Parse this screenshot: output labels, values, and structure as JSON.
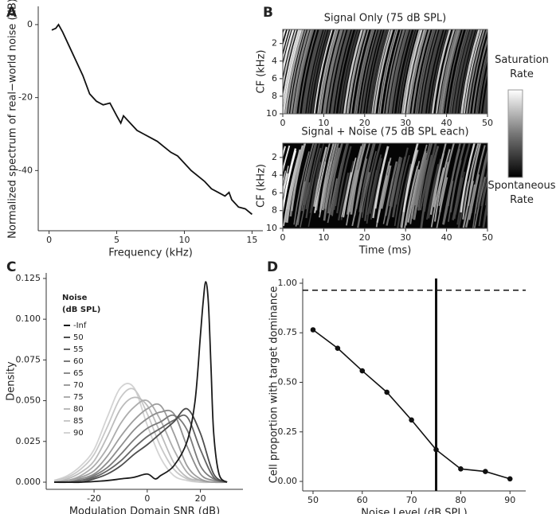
{
  "chart_data": [
    {
      "type": "line",
      "panel_label": "A",
      "xlabel": "Frequency (kHz)",
      "ylabel": "Normalized spectrum of real−world noise (dB)",
      "x": [
        0.2,
        0.5,
        0.7,
        1,
        1.5,
        2,
        2.5,
        3,
        3.5,
        4,
        4.5,
        5,
        5.3,
        5.5,
        6,
        6.5,
        7,
        7.5,
        8,
        8.5,
        9,
        9.5,
        10,
        10.5,
        11,
        11.5,
        12,
        12.5,
        13,
        13.3,
        13.5,
        14,
        14.5,
        15
      ],
      "values": [
        -1.5,
        -1,
        0,
        -2,
        -6,
        -10,
        -14,
        -19,
        -21,
        -22,
        -21.5,
        -25,
        -27,
        -25,
        -27,
        -29,
        -30,
        -31,
        -32,
        -33.5,
        -35,
        -36,
        -38,
        -40,
        -41.5,
        -43,
        -45,
        -46,
        -47,
        -46,
        -48,
        -50,
        -50.5,
        -52
      ],
      "color": "#111111",
      "xlim": [
        -0.8,
        15.8
      ],
      "ylim": [
        -56.5,
        5
      ],
      "xticks": [
        0,
        5,
        10,
        15
      ],
      "yticks": [
        0,
        -20,
        -40
      ]
    },
    {
      "type": "heatmap",
      "panel_label": "B",
      "title": "Signal Only (75 dB SPL)",
      "ylabel": "CF (kHz)",
      "xlim": [
        0,
        50
      ],
      "ylim": [
        10,
        0.4
      ],
      "xticks": [
        0,
        10,
        20,
        30,
        40,
        50
      ],
      "yticks": [
        2,
        4,
        6,
        8,
        10
      ],
      "noise": false,
      "colorbar_labels": [
        "Saturation\nRate",
        "Spontaneous\nRate"
      ]
    },
    {
      "type": "heatmap",
      "title": "Signal + Noise (75 dB SPL each)",
      "ylabel": "CF (kHz)",
      "xlabel": "Time (ms)",
      "xlim": [
        0,
        50
      ],
      "ylim": [
        10,
        0.4
      ],
      "xticks": [
        0,
        10,
        20,
        30,
        40,
        50
      ],
      "yticks": [
        2,
        4,
        6,
        8,
        10
      ],
      "noise": true
    },
    {
      "type": "density",
      "panel_label": "C",
      "xlabel": "Modulation Domain SNR (dB)",
      "ylabel": "Density",
      "legend_title": "Noise\n(dB SPL)",
      "xlim": [
        -38,
        36
      ],
      "ylim": [
        -0.0044,
        0.1284
      ],
      "xticks": [
        -20,
        0,
        20
      ],
      "yticks": [
        {
          "value": 0,
          "label": "0.000"
        },
        {
          "value": 0.025,
          "label": "0.025"
        },
        {
          "value": 0.05,
          "label": "0.050"
        },
        {
          "value": 0.075,
          "label": "0.075"
        },
        {
          "value": 0.1,
          "label": "0.100"
        },
        {
          "value": 0.125,
          "label": "0.125"
        }
      ],
      "x": [
        -35,
        -30,
        -25,
        -20,
        -15,
        -10,
        -5,
        0,
        5,
        10,
        15,
        20,
        25,
        30
      ],
      "series": [
        {
          "name": "-Inf",
          "color": "#1a1a1a",
          "x": [
            -35,
            -25,
            -15,
            -10,
            -5,
            0,
            3,
            5,
            10,
            15,
            18,
            20,
            21,
            22,
            23,
            24,
            25,
            27,
            30
          ],
          "values": [
            0,
            0,
            0.001,
            0.002,
            0.003,
            0.005,
            0.002,
            0.004,
            0.01,
            0.025,
            0.05,
            0.09,
            0.11,
            0.123,
            0.11,
            0.07,
            0.03,
            0.005,
            0
          ]
        },
        {
          "name": "50",
          "color": "#4d4d4d",
          "values": [
            0,
            0,
            0,
            0.002,
            0.005,
            0.01,
            0.017,
            0.023,
            0.03,
            0.037,
            0.045,
            0.03,
            0.005,
            0
          ]
        },
        {
          "name": "55",
          "color": "#656565",
          "values": [
            0,
            0,
            0.001,
            0.003,
            0.007,
            0.013,
            0.021,
            0.028,
            0.033,
            0.038,
            0.04,
            0.02,
            0.003,
            0
          ]
        },
        {
          "name": "60",
          "color": "#7a7a7a",
          "values": [
            0,
            0,
            0.001,
            0.004,
            0.009,
            0.017,
            0.026,
            0.033,
            0.037,
            0.041,
            0.032,
            0.01,
            0.002,
            0
          ]
        },
        {
          "name": "65",
          "color": "#8c8c8c",
          "values": [
            0,
            0,
            0.002,
            0.005,
            0.012,
            0.022,
            0.032,
            0.039,
            0.043,
            0.042,
            0.022,
            0.005,
            0.001,
            0
          ]
        },
        {
          "name": "70",
          "color": "#9d9d9d",
          "values": [
            0,
            0.001,
            0.003,
            0.007,
            0.016,
            0.028,
            0.038,
            0.045,
            0.047,
            0.03,
            0.01,
            0.002,
            0,
            0
          ]
        },
        {
          "name": "75",
          "color": "#adadad",
          "values": [
            0,
            0.001,
            0.004,
            0.01,
            0.021,
            0.036,
            0.046,
            0.05,
            0.038,
            0.02,
            0.006,
            0.001,
            0,
            0
          ]
        },
        {
          "name": "80",
          "color": "#bbbbbb",
          "values": [
            0,
            0.002,
            0.006,
            0.013,
            0.028,
            0.045,
            0.052,
            0.047,
            0.03,
            0.012,
            0.003,
            0.001,
            0,
            0
          ]
        },
        {
          "name": "85",
          "color": "#c8c8c8",
          "values": [
            0.001,
            0.003,
            0.008,
            0.017,
            0.034,
            0.052,
            0.057,
            0.042,
            0.022,
            0.008,
            0.002,
            0,
            0,
            0
          ]
        },
        {
          "name": "90",
          "color": "#d3d3d3",
          "values": [
            0.001,
            0.004,
            0.01,
            0.02,
            0.04,
            0.058,
            0.058,
            0.035,
            0.015,
            0.004,
            0.001,
            0,
            0,
            0
          ]
        }
      ]
    },
    {
      "type": "line",
      "panel_label": "D",
      "xlabel": "Noise Level (dB SPL)",
      "ylabel": "Cell proportion with target dominance",
      "x": [
        50,
        55,
        60,
        65,
        70,
        75,
        80,
        85,
        90
      ],
      "values": [
        0.765,
        0.672,
        0.558,
        0.45,
        0.31,
        0.16,
        0.063,
        0.05,
        0.013
      ],
      "color": "#111111",
      "markers": true,
      "hline": 0.965,
      "vline": 75,
      "xlim": [
        47.9,
        93.2
      ],
      "ylim": [
        -0.048,
        1.024
      ],
      "xticks": [
        50,
        60,
        70,
        80,
        90
      ],
      "yticks": [
        {
          "value": 0,
          "label": "0.00"
        },
        {
          "value": 0.25,
          "label": "0.25"
        },
        {
          "value": 0.5,
          "label": "0.50"
        },
        {
          "value": 0.75,
          "label": "0.75"
        },
        {
          "value": 1,
          "label": "1.00"
        }
      ]
    }
  ]
}
